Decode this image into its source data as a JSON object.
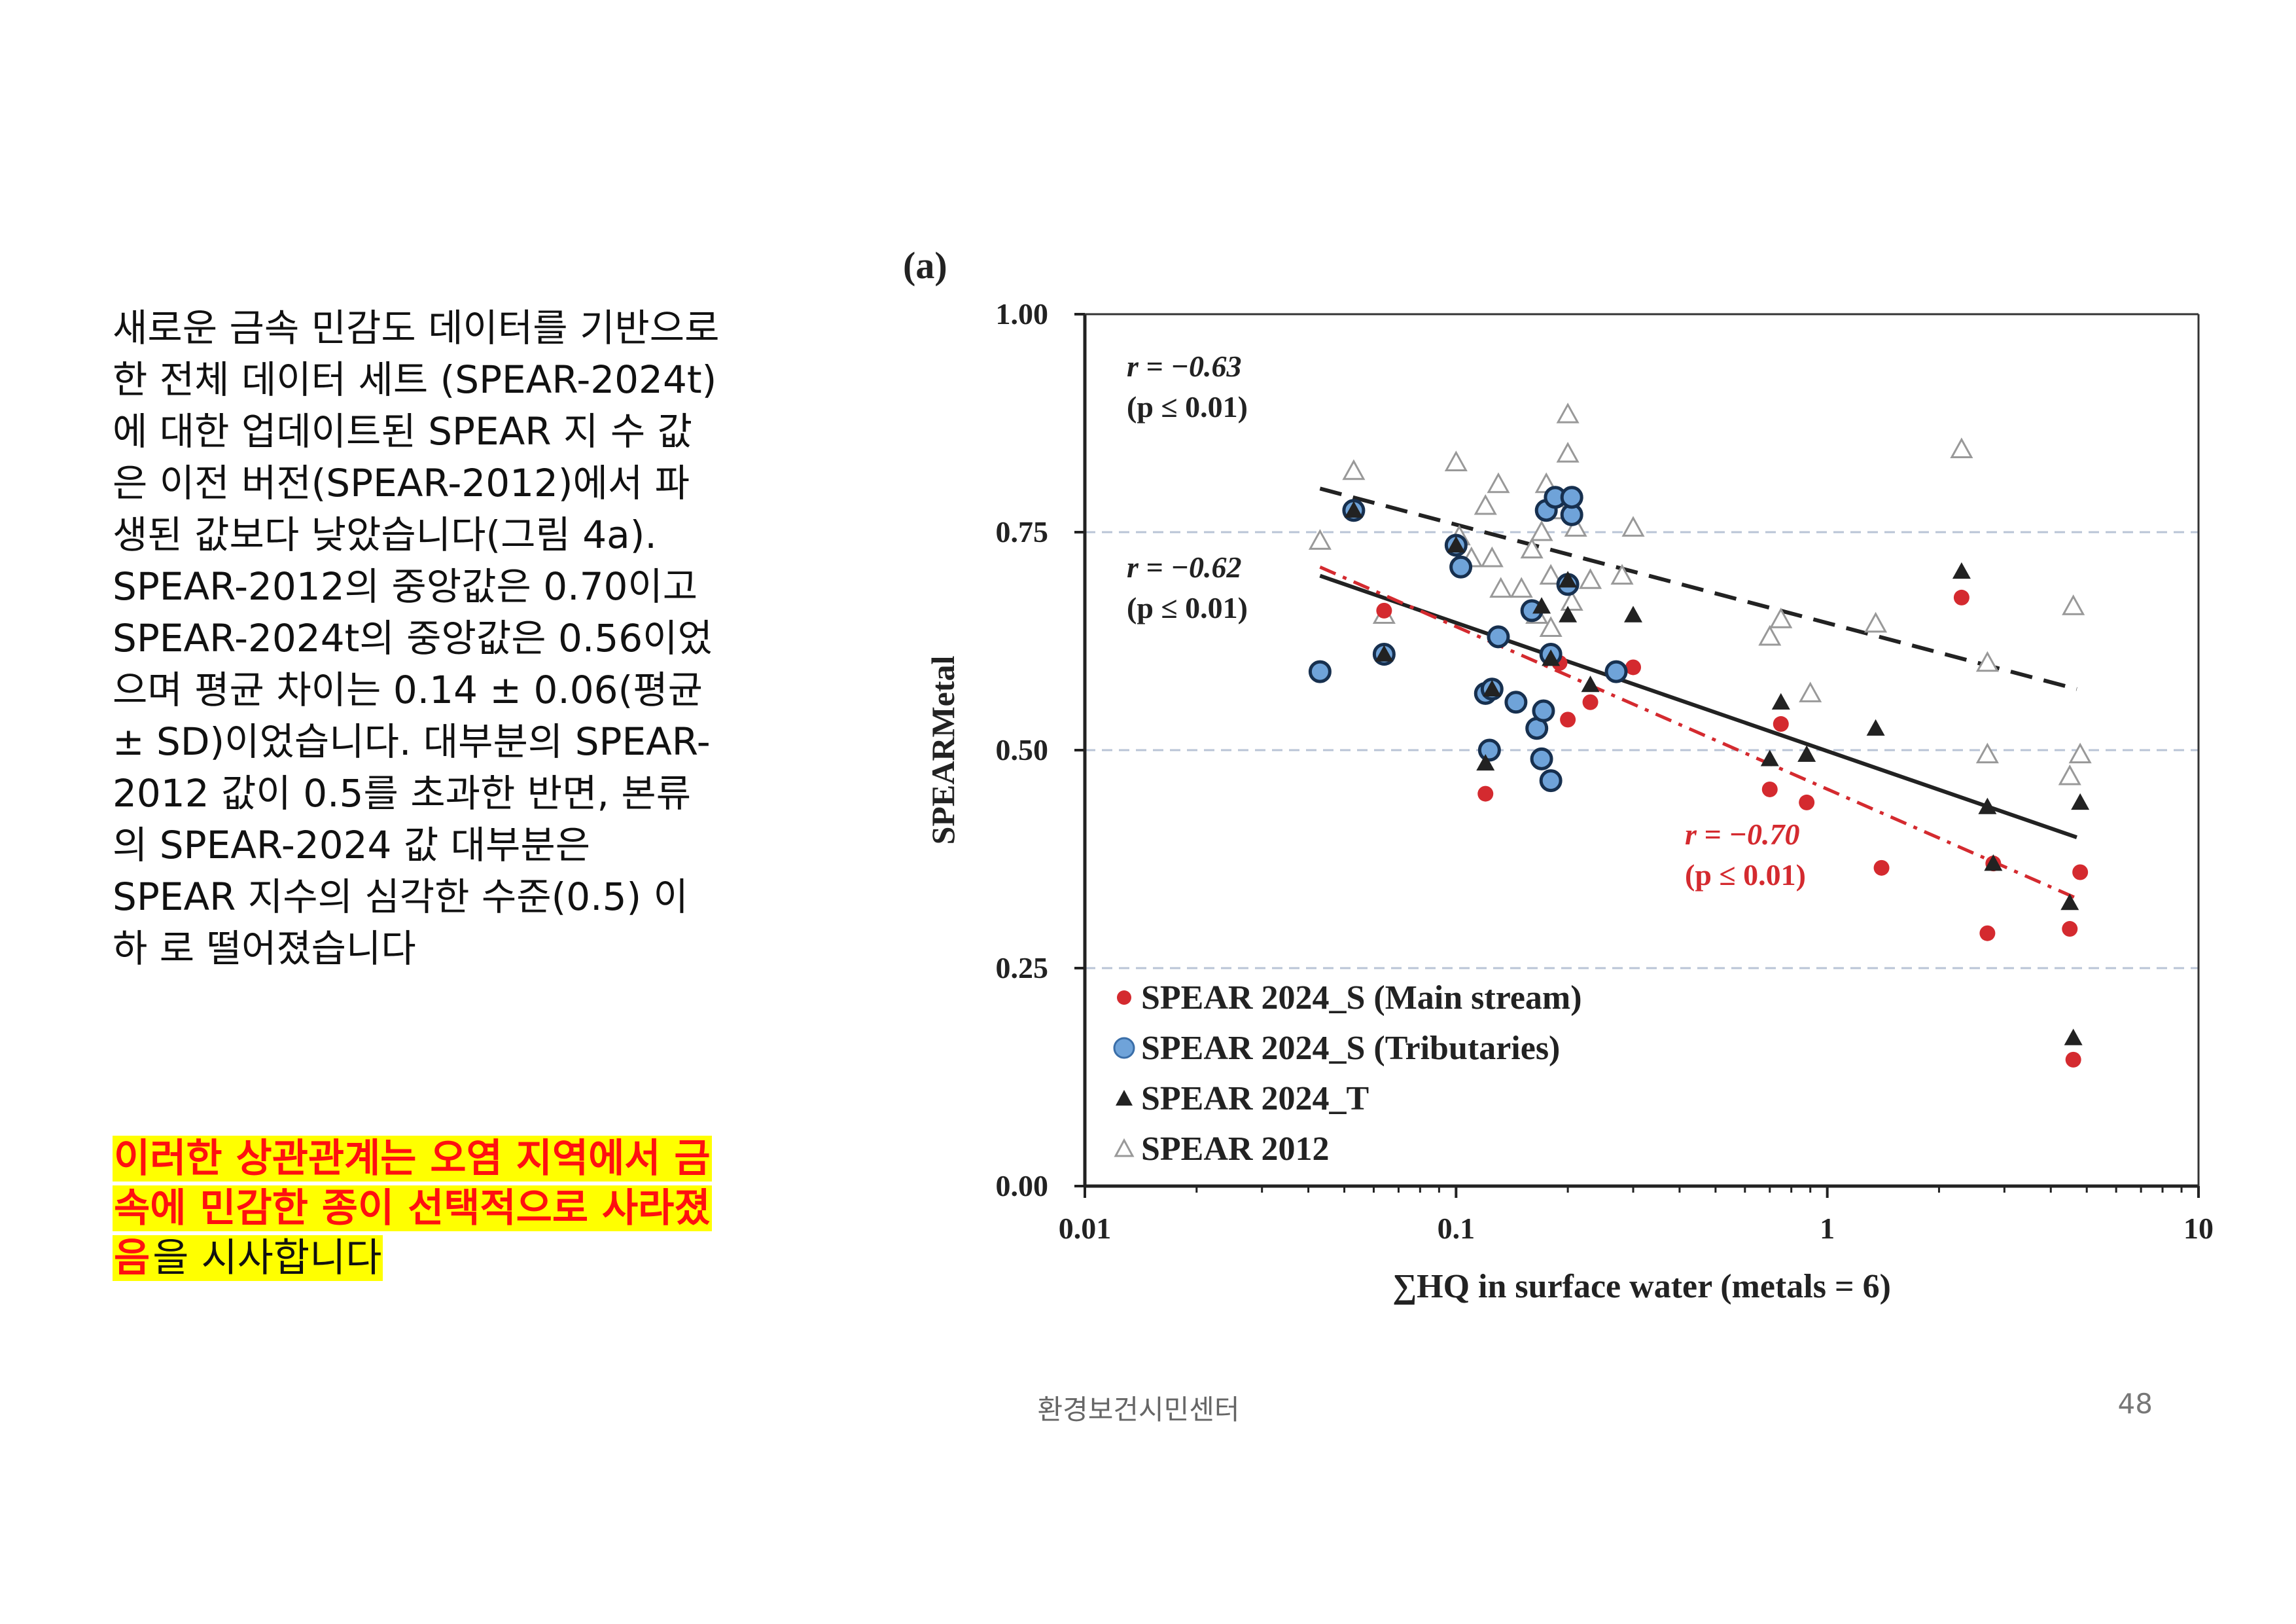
{
  "body_text": "새로운 금속 민감도 데이터를 기반으로 한 전체 데이터 세트 (SPEAR-2024t)에 대한 업데이트된 SPEAR 지 수 값은 이전 버전(SPEAR-2012)에서 파생된 값보다 낮았습니다(그림 4a). SPEAR-2012의 중앙값은 0.70이고 SPEAR-2024t의 중앙값은 0.56이었으며 평균 차이는 0.14 ± 0.06(평균 ± SD)이었습니다. 대부분의 SPEAR-2012 값이 0.5를 초과한 반면, 본류의 SPEAR-2024 값 대부분은 SPEAR 지수의 심각한 수준(0.5) 이하 로 떨어졌습니다",
  "highlight": {
    "emphasis": "이러한 상관관계는 오염 지역에서 금속에 민감한 종이 선택적으로 사라졌음",
    "tail": "을 시사합니다"
  },
  "footer": {
    "organization": "환경보건시민센터",
    "page_number": "48"
  },
  "colors": {
    "main": "#d42a2f",
    "trib": "#6fa3d9",
    "trib_dark": "#17304f",
    "t": "#222222",
    "s2012": "#999999",
    "highlight_bg": "#ffff00",
    "highlight_text": "#ff1010"
  },
  "chart_data": {
    "type": "scatter",
    "panel_label": "(a)",
    "xlabel": "∑HQ in surface water (metals = 6)",
    "ylabel": "SPEARMetal",
    "x_scale": "log",
    "xlim": [
      0.01,
      10
    ],
    "ylim": [
      0,
      1
    ],
    "xticks": [
      0.01,
      0.1,
      1,
      10
    ],
    "xtick_labels": [
      "0.01",
      "0.1",
      "1",
      "10"
    ],
    "yticks": [
      0,
      0.25,
      0.5,
      0.75,
      1
    ],
    "ytick_labels": [
      "0.00",
      "0.25",
      "0.50",
      "0.75",
      "1.00"
    ],
    "grid": "horizontal dashed at 0.25, 0.50, 0.75",
    "legend_position": "bottom-left",
    "series": [
      {
        "name": "SPEAR 2024_S (Main stream)",
        "marker": "filled-circle",
        "points": [
          [
            0.064,
            0.66
          ],
          [
            0.12,
            0.45
          ],
          [
            0.19,
            0.6
          ],
          [
            0.2,
            0.535
          ],
          [
            0.23,
            0.555
          ],
          [
            0.3,
            0.595
          ],
          [
            0.7,
            0.455
          ],
          [
            0.75,
            0.53
          ],
          [
            0.88,
            0.44
          ],
          [
            1.4,
            0.365
          ],
          [
            2.3,
            0.675
          ],
          [
            2.7,
            0.29
          ],
          [
            2.8,
            0.37
          ],
          [
            4.5,
            0.295
          ],
          [
            4.6,
            0.145
          ],
          [
            4.8,
            0.36
          ]
        ]
      },
      {
        "name": "SPEAR 2024_S (Tributaries)",
        "marker": "blue-circle",
        "points": [
          [
            0.043,
            0.59
          ],
          [
            0.053,
            0.775
          ],
          [
            0.064,
            0.61
          ],
          [
            0.1,
            0.735
          ],
          [
            0.103,
            0.71
          ],
          [
            0.12,
            0.565
          ],
          [
            0.123,
            0.5
          ],
          [
            0.125,
            0.57
          ],
          [
            0.13,
            0.63
          ],
          [
            0.145,
            0.555
          ],
          [
            0.16,
            0.66
          ],
          [
            0.165,
            0.525
          ],
          [
            0.17,
            0.49
          ],
          [
            0.172,
            0.545
          ],
          [
            0.175,
            0.775
          ],
          [
            0.18,
            0.465
          ],
          [
            0.18,
            0.61
          ],
          [
            0.185,
            0.79
          ],
          [
            0.2,
            0.69
          ],
          [
            0.205,
            0.77
          ],
          [
            0.205,
            0.79
          ],
          [
            0.27,
            0.59
          ]
        ]
      },
      {
        "name": "SPEAR 2024_T",
        "marker": "filled-triangle",
        "points": [
          [
            0.053,
            0.775
          ],
          [
            0.064,
            0.61
          ],
          [
            0.1,
            0.735
          ],
          [
            0.12,
            0.485
          ],
          [
            0.125,
            0.57
          ],
          [
            0.17,
            0.665
          ],
          [
            0.18,
            0.605
          ],
          [
            0.2,
            0.655
          ],
          [
            0.2,
            0.695
          ],
          [
            0.23,
            0.575
          ],
          [
            0.3,
            0.655
          ],
          [
            0.7,
            0.49
          ],
          [
            0.75,
            0.555
          ],
          [
            0.88,
            0.495
          ],
          [
            1.35,
            0.525
          ],
          [
            2.3,
            0.705
          ],
          [
            2.7,
            0.435
          ],
          [
            2.8,
            0.37
          ],
          [
            4.5,
            0.325
          ],
          [
            4.6,
            0.17
          ],
          [
            4.8,
            0.44
          ]
        ]
      },
      {
        "name": "SPEAR 2012",
        "marker": "open-triangle",
        "points": [
          [
            0.043,
            0.74
          ],
          [
            0.053,
            0.82
          ],
          [
            0.064,
            0.655
          ],
          [
            0.1,
            0.83
          ],
          [
            0.102,
            0.745
          ],
          [
            0.11,
            0.72
          ],
          [
            0.12,
            0.78
          ],
          [
            0.125,
            0.72
          ],
          [
            0.13,
            0.805
          ],
          [
            0.132,
            0.685
          ],
          [
            0.15,
            0.685
          ],
          [
            0.16,
            0.73
          ],
          [
            0.165,
            0.655
          ],
          [
            0.17,
            0.75
          ],
          [
            0.175,
            0.805
          ],
          [
            0.18,
            0.7
          ],
          [
            0.18,
            0.64
          ],
          [
            0.19,
            0.775
          ],
          [
            0.2,
            0.885
          ],
          [
            0.2,
            0.84
          ],
          [
            0.205,
            0.67
          ],
          [
            0.21,
            0.755
          ],
          [
            0.23,
            0.695
          ],
          [
            0.28,
            0.7
          ],
          [
            0.3,
            0.755
          ],
          [
            0.7,
            0.63
          ],
          [
            0.75,
            0.65
          ],
          [
            0.9,
            0.565
          ],
          [
            1.35,
            0.645
          ],
          [
            2.3,
            0.845
          ],
          [
            2.7,
            0.6
          ],
          [
            2.7,
            0.495
          ],
          [
            4.5,
            0.47
          ],
          [
            4.6,
            0.665
          ],
          [
            4.8,
            0.495
          ]
        ]
      }
    ],
    "trendlines": [
      {
        "series": "SPEAR 2012",
        "style": "dashed",
        "x": [
          0.043,
          4.7
        ],
        "y": [
          0.8,
          0.57
        ],
        "r": "r = −0.63",
        "p": "(p ≤ 0.01)"
      },
      {
        "series": "SPEAR 2024_T",
        "style": "solid",
        "x": [
          0.043,
          4.7
        ],
        "y": [
          0.7,
          0.4
        ],
        "r": "r = −0.62",
        "p": "(p ≤ 0.01)"
      },
      {
        "series": "SPEAR 2024_S (Main stream)",
        "style": "dash-dot",
        "x": [
          0.043,
          4.7
        ],
        "y": [
          0.71,
          0.33
        ],
        "r": "r = −0.70",
        "p": "(p ≤ 0.01)"
      }
    ]
  }
}
